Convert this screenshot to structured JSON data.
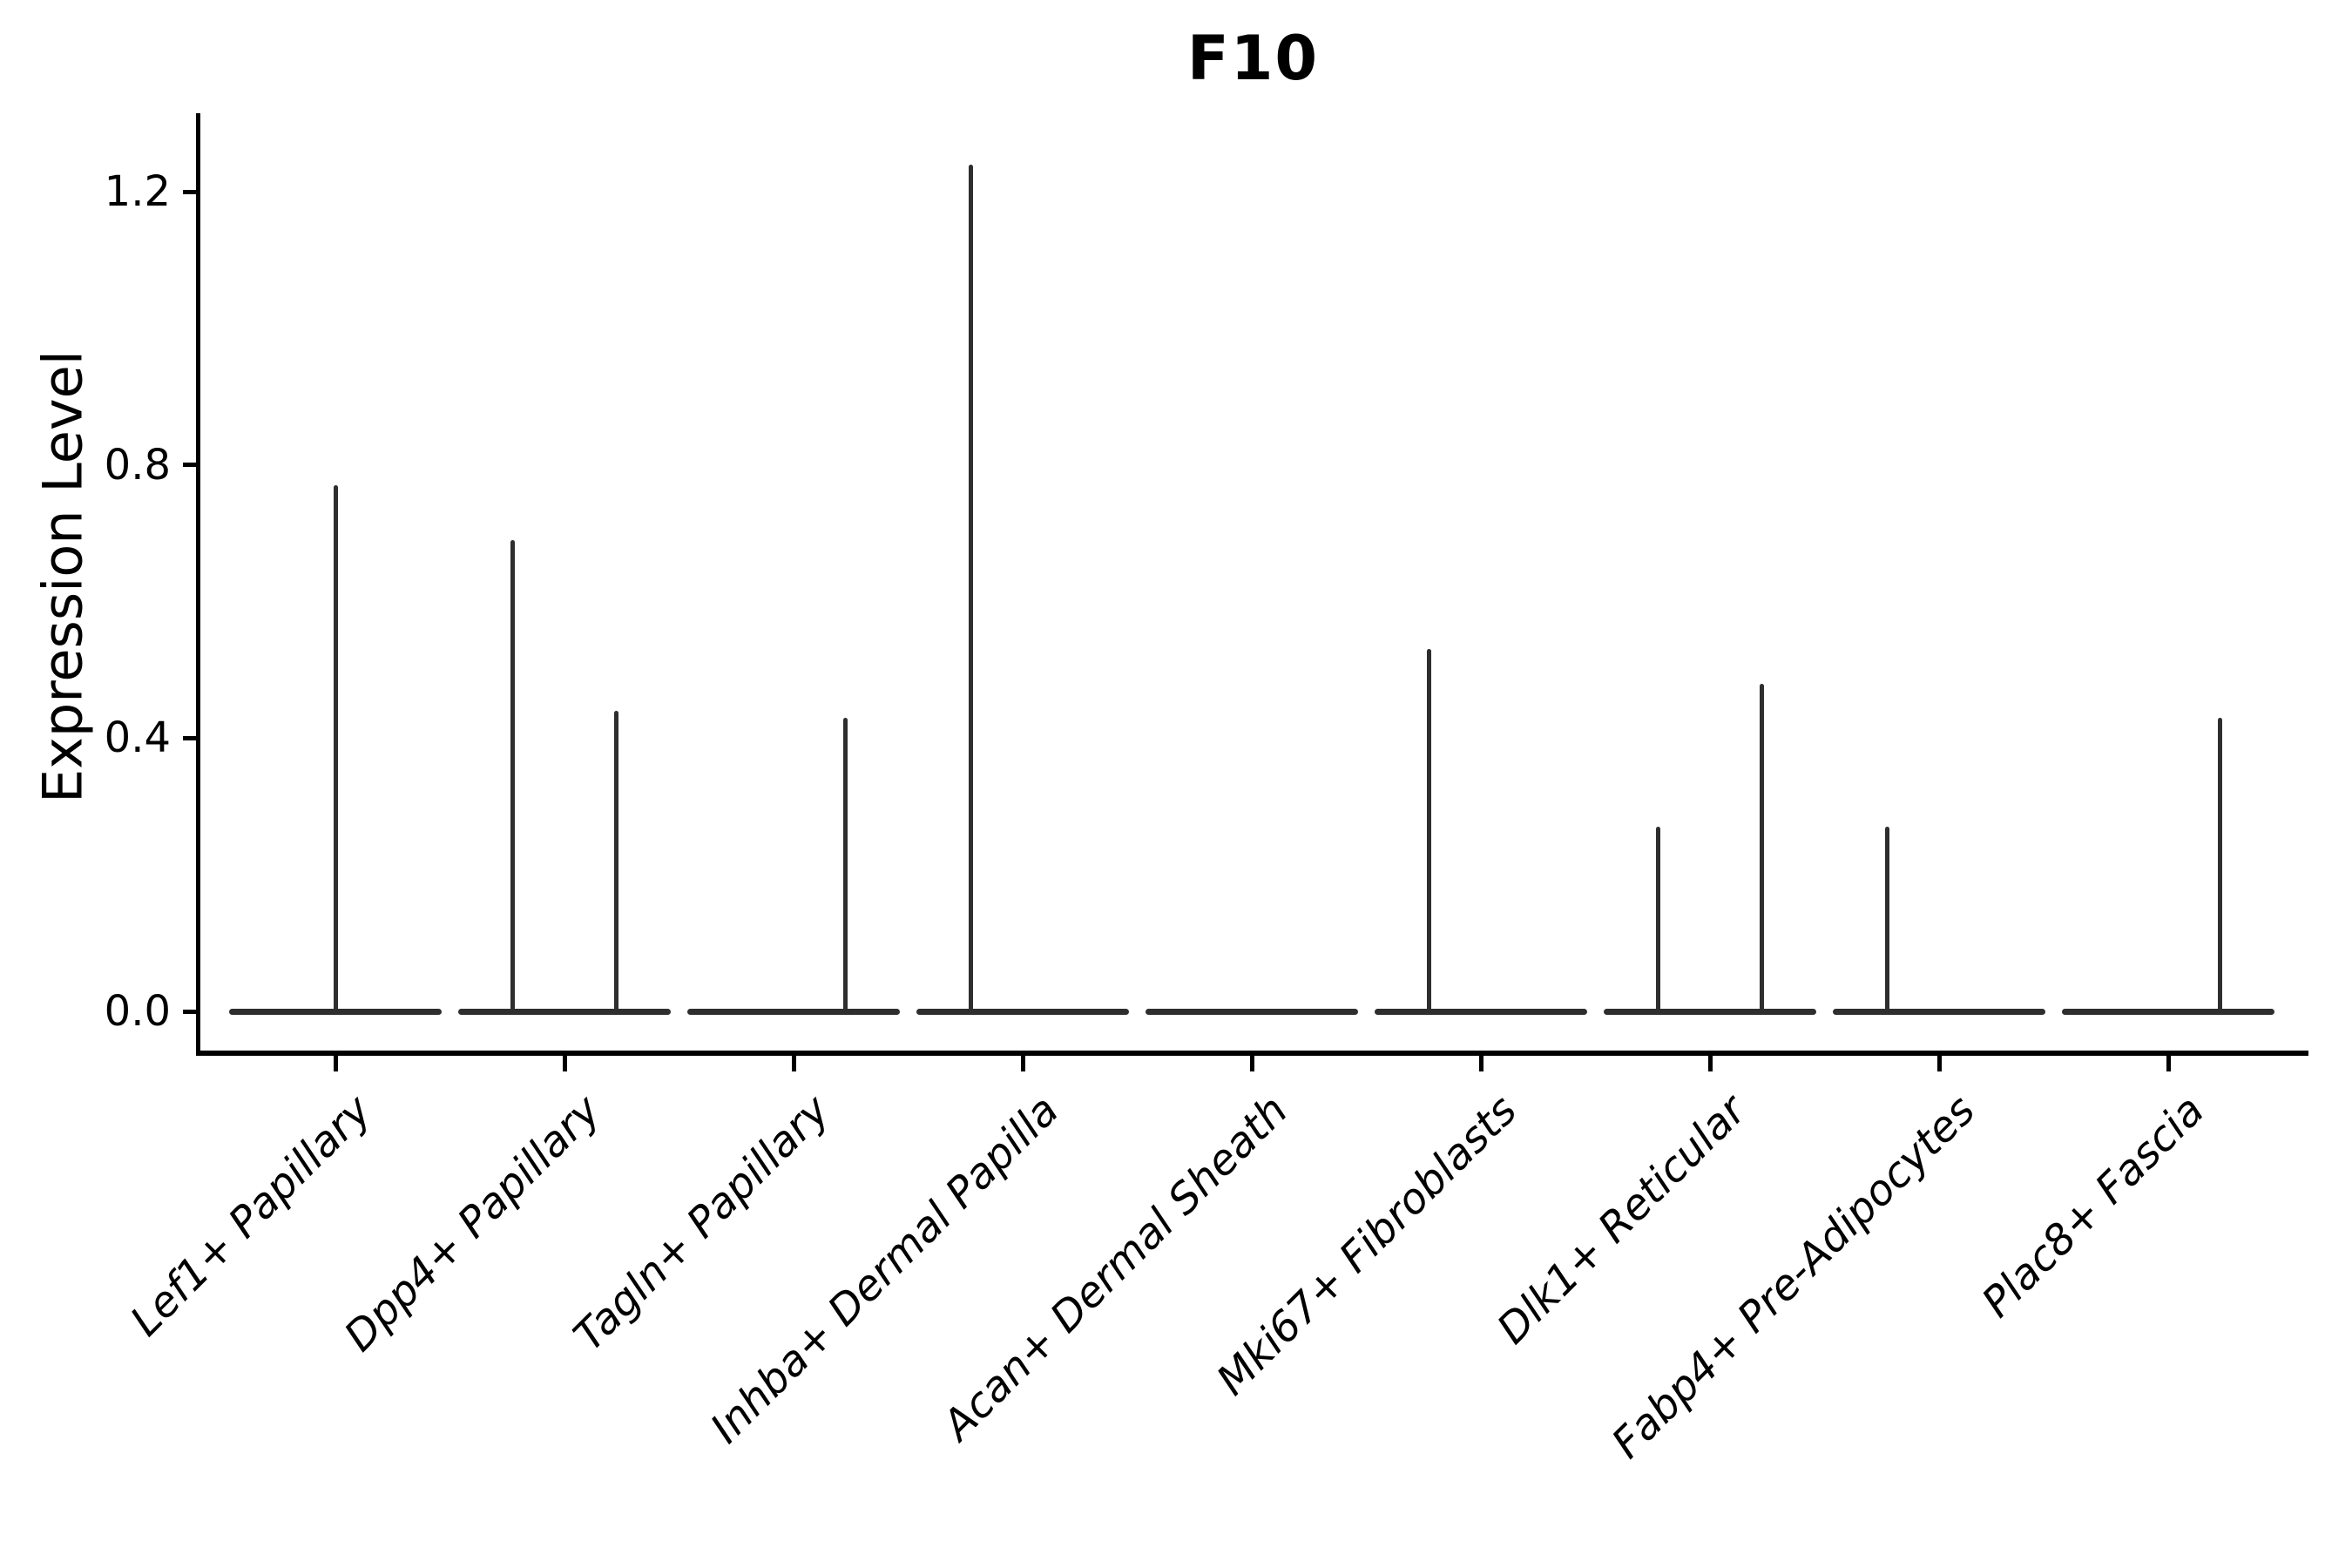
{
  "figure": {
    "background": "#ffffff"
  },
  "chart_data": {
    "type": "violin",
    "title": "F10",
    "ylabel": "Expression Level",
    "xlabel": "",
    "ylim": [
      0,
      1.32
    ],
    "ytick_labels": [
      "0.0",
      "0.4",
      "0.8",
      "1.2"
    ],
    "ytick_values": [
      0.0,
      0.4,
      0.8,
      1.2
    ],
    "grid": false,
    "legend": false,
    "x_label_rotation_deg": 45,
    "x_label_style": "italic",
    "colors": {
      "violin_outline": "#2e2e2e",
      "axis_spine": "#000000",
      "text": "#000000"
    },
    "categories": [
      "Lef1+ Papillary",
      "Dpp4+ Papillary",
      "Tagln+ Papillary",
      "Inhba+ Dermal Papilla",
      "Acan+ Dermal Sheath",
      "Mki67+ Fibroblasts",
      "Dlk1+ Reticular",
      "Fabp4+ Pre-Adipocytes",
      "Plac8+ Fascia"
    ],
    "violins": [
      {
        "category": "Lef1+ Papillary",
        "baseline_value": 0.0,
        "needles": [
          {
            "offset_frac": 0.0,
            "peak_value": 0.77
          }
        ]
      },
      {
        "category": "Dpp4+ Papillary",
        "baseline_value": 0.0,
        "needles": [
          {
            "offset_frac": -0.225,
            "peak_value": 0.69
          },
          {
            "offset_frac": 0.225,
            "peak_value": 0.44
          }
        ]
      },
      {
        "category": "Tagln+ Papillary",
        "baseline_value": 0.0,
        "needles": [
          {
            "offset_frac": 0.225,
            "peak_value": 0.43
          }
        ]
      },
      {
        "category": "Inhba+ Dermal Papilla",
        "baseline_value": 0.0,
        "needles": [
          {
            "offset_frac": -0.225,
            "peak_value": 1.24
          }
        ]
      },
      {
        "category": "Acan+ Dermal Sheath",
        "baseline_value": 0.0,
        "needles": []
      },
      {
        "category": "Mki67+ Fibroblasts",
        "baseline_value": 0.0,
        "needles": [
          {
            "offset_frac": -0.225,
            "peak_value": 0.53
          }
        ]
      },
      {
        "category": "Dlk1+ Reticular",
        "baseline_value": 0.0,
        "needles": [
          {
            "offset_frac": -0.225,
            "peak_value": 0.27
          },
          {
            "offset_frac": 0.225,
            "peak_value": 0.48
          }
        ]
      },
      {
        "category": "Fabp4+ Pre-Adipocytes",
        "baseline_value": 0.0,
        "needles": [
          {
            "offset_frac": -0.225,
            "peak_value": 0.27
          }
        ]
      },
      {
        "category": "Plac8+ Fascia",
        "baseline_value": 0.0,
        "needles": [
          {
            "offset_frac": 0.225,
            "peak_value": 0.43
          }
        ]
      }
    ]
  }
}
